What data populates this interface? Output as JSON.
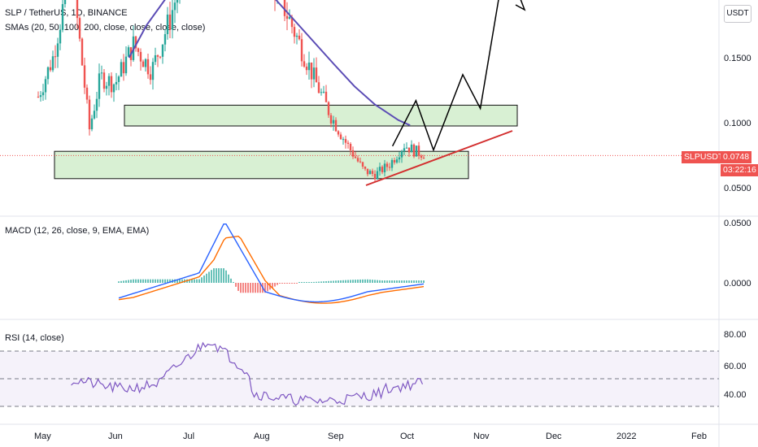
{
  "header": {
    "symbol_line": "SLP / TetherUS, 1D, BINANCE",
    "sma_line": "SMAs (20, 50, 100, 200, close, close, close, close)"
  },
  "currency": "USDT",
  "price_panel": {
    "ticks": [
      "0.1500",
      "0.1000",
      "0.0500"
    ],
    "last_price_symbol": "SLPUSDT",
    "last_price": "0.0748",
    "countdown": "03:22:16"
  },
  "macd_panel": {
    "label": "MACD (12, 26, close, 9, EMA, EMA)",
    "ticks": [
      "0.0500",
      "0.0000"
    ]
  },
  "rsi_panel": {
    "label": "RSI (14, close)",
    "ticks": [
      "80.00",
      "60.00",
      "40.00"
    ],
    "levels": [
      70,
      50,
      30
    ]
  },
  "time_axis": [
    "May",
    "Jun",
    "Jul",
    "Aug",
    "Sep",
    "Oct",
    "Nov",
    "Dec",
    "2022",
    "Feb"
  ],
  "colors": {
    "up": "#26a69a",
    "down": "#ef5350",
    "sma": "#5b4cb5",
    "macd": "#2962ff",
    "signal": "#ff6d00",
    "rsi": "#7e57c2",
    "zone_fill": "#d8f0d3",
    "trendline": "#d32f2f"
  },
  "chart_data": {
    "type": "candlestick",
    "symbol": "SLP / TetherUS",
    "interval": "1D",
    "exchange": "BINANCE",
    "price_ylim": [
      0.03,
      0.23
    ],
    "last_price": 0.0748,
    "sma_curve": [
      [
        0.36,
        0.15
      ],
      [
        0.42,
        0.175
      ],
      [
        0.5,
        0.2
      ],
      [
        0.58,
        0.22
      ],
      [
        0.66,
        0.227
      ],
      [
        0.74,
        0.221
      ],
      [
        0.82,
        0.205
      ],
      [
        0.9,
        0.185
      ],
      [
        0.98,
        0.165
      ],
      [
        1.06,
        0.145
      ],
      [
        1.13,
        0.128
      ],
      [
        1.2,
        0.114
      ],
      [
        1.28,
        0.102
      ],
      [
        1.32,
        0.098
      ]
    ],
    "support_zones": [
      {
        "from": 0.0975,
        "to": 0.1135
      },
      {
        "from": 0.057,
        "to": 0.078
      }
    ],
    "projection_path": [
      [
        1.26,
        0.082
      ],
      [
        1.34,
        0.117
      ],
      [
        1.4,
        0.079
      ],
      [
        1.5,
        0.137
      ],
      [
        1.56,
        0.111
      ],
      [
        1.65,
        0.232
      ]
    ],
    "trendline": [
      [
        0.93,
        0.054
      ],
      [
        1.63,
        0.091
      ]
    ],
    "macd_ylim": [
      -0.02,
      0.06
    ],
    "rsi_ylim": [
      22,
      90
    ],
    "rsi_bands": [
      30,
      70
    ],
    "note": "x positions expressed in months since May 2021 start (0=May 1)"
  }
}
